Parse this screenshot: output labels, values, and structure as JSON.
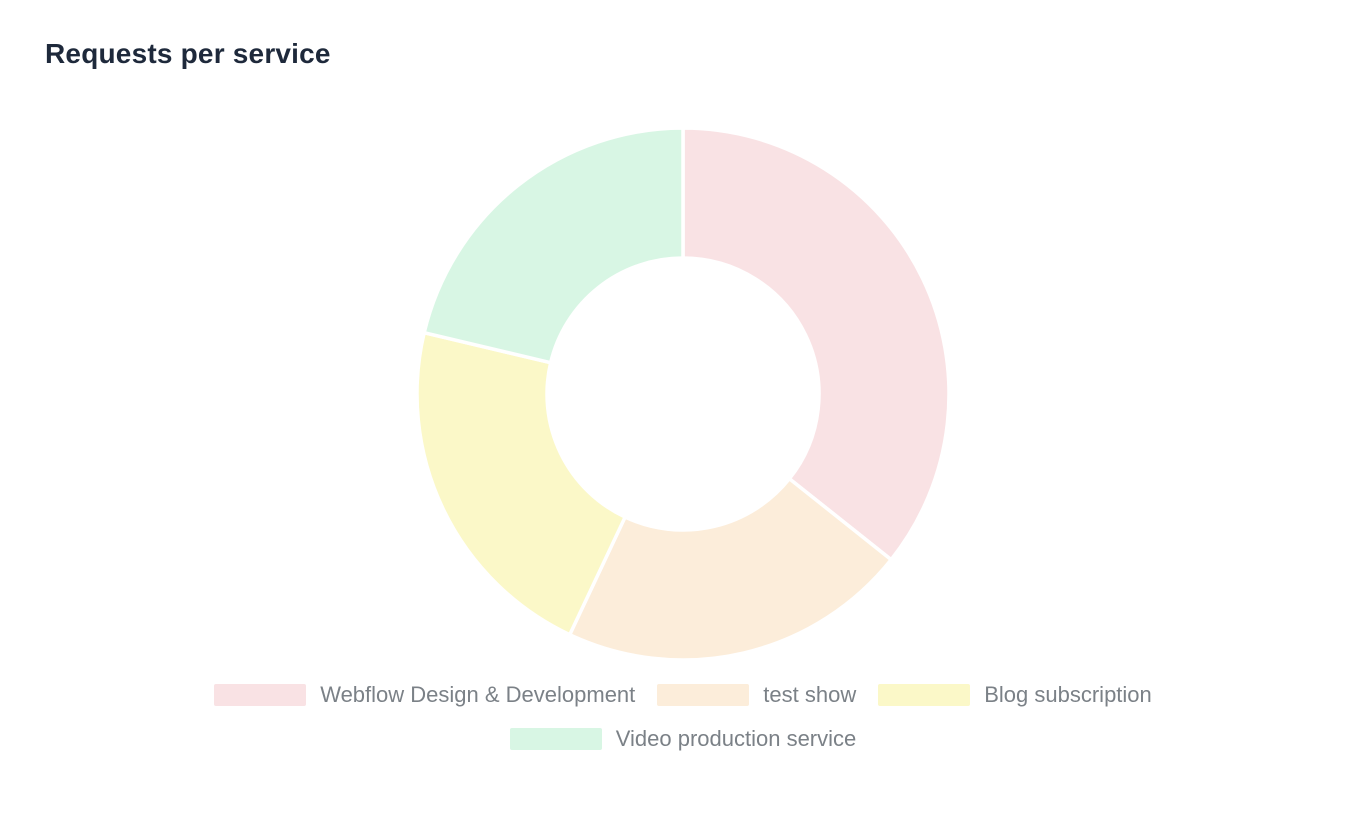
{
  "title": "Requests per service",
  "colors": {
    "background": "#ffffff",
    "title_text": "#1e293b",
    "legend_text": "#7b8187",
    "segment_border": "#ffffff"
  },
  "chart_data": {
    "type": "pie",
    "variant": "donut",
    "title": "Requests per service",
    "legend_position": "bottom",
    "start_angle_deg": 0,
    "direction": "clockwise",
    "cutout_ratio": 0.51,
    "segments": [
      {
        "label": "Webflow Design & Development",
        "percent": 35.7,
        "color": "#f9e2e4"
      },
      {
        "label": "test show",
        "percent": 21.3,
        "color": "#fcedda"
      },
      {
        "label": "Blog subscription",
        "percent": 21.7,
        "color": "#fbf8c8"
      },
      {
        "label": "Video production service",
        "percent": 21.3,
        "color": "#d8f6e4"
      }
    ]
  }
}
